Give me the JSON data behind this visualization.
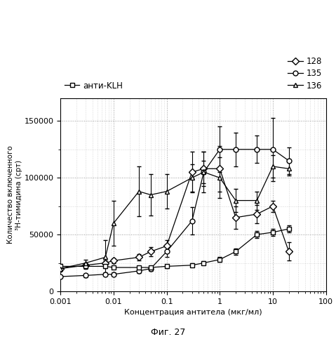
{
  "xlabel": "Концентрация антитела (мкг/мл)",
  "ylabel": "Количество включенного\n³Н-тимидина (срт)",
  "figcaption": "Фиг. 27",
  "xlim": [
    0.001,
    100
  ],
  "ylim": [
    0,
    170000
  ],
  "yticks": [
    0,
    50000,
    100000,
    150000
  ],
  "series_128": {
    "label": "128",
    "marker": "D",
    "x": [
      0.001,
      0.003,
      0.007,
      0.01,
      0.03,
      0.05,
      0.1,
      0.3,
      0.5,
      1.0,
      2.0,
      5.0,
      10.0,
      20.0
    ],
    "y": [
      20000,
      23000,
      25000,
      27000,
      30000,
      35000,
      40000,
      105000,
      108000,
      108000,
      65000,
      68000,
      75000,
      35000
    ],
    "yerr": [
      2000,
      2000,
      2000,
      2000,
      3000,
      4000,
      5000,
      18000,
      15000,
      20000,
      10000,
      8000,
      5000,
      8000
    ]
  },
  "series_135": {
    "label": "135",
    "marker": "o",
    "x": [
      0.001,
      0.003,
      0.007,
      0.01,
      0.03,
      0.05,
      0.1,
      0.3,
      0.5,
      1.0,
      2.0,
      5.0,
      10.0,
      20.0
    ],
    "y": [
      13000,
      14000,
      15000,
      15000,
      18000,
      20000,
      35000,
      62000,
      105000,
      125000,
      125000,
      125000,
      125000,
      115000
    ],
    "yerr": [
      1500,
      1500,
      1500,
      1500,
      2000,
      2000,
      5000,
      12000,
      18000,
      20000,
      15000,
      12000,
      28000,
      12000
    ]
  },
  "series_KLH": {
    "label": "анти-KLH",
    "marker": "s",
    "x": [
      0.001,
      0.003,
      0.007,
      0.01,
      0.03,
      0.05,
      0.1,
      0.3,
      0.5,
      1.0,
      2.0,
      5.0,
      10.0,
      20.0
    ],
    "y": [
      22000,
      22000,
      22000,
      21000,
      21000,
      21000,
      22000,
      23000,
      25000,
      28000,
      35000,
      50000,
      52000,
      55000
    ],
    "yerr": [
      2000,
      2000,
      1500,
      1500,
      1500,
      1500,
      1500,
      1500,
      1500,
      2000,
      3000,
      3000,
      3000,
      3000
    ]
  },
  "series_136": {
    "label": "136",
    "marker": "^",
    "x": [
      0.001,
      0.003,
      0.007,
      0.01,
      0.03,
      0.05,
      0.1,
      0.3,
      0.5,
      1.0,
      2.0,
      5.0,
      10.0,
      20.0
    ],
    "y": [
      20000,
      25000,
      30000,
      60000,
      88000,
      85000,
      88000,
      100000,
      105000,
      100000,
      80000,
      80000,
      110000,
      108000
    ],
    "yerr": [
      2000,
      3000,
      15000,
      20000,
      22000,
      18000,
      15000,
      12000,
      10000,
      18000,
      10000,
      8000,
      10000,
      6000
    ]
  },
  "line_color": "#000000",
  "background_color": "#ffffff",
  "grid_color": "#bbbbbb"
}
